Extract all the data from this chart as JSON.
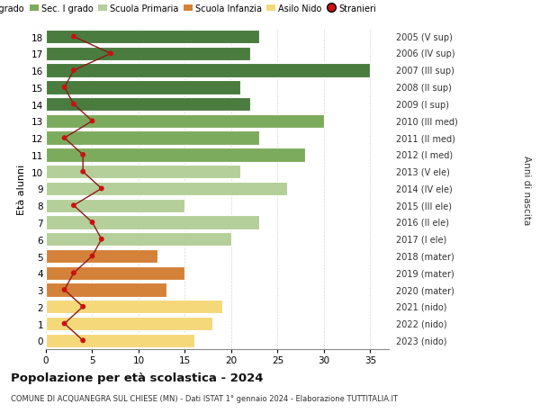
{
  "ages": [
    18,
    17,
    16,
    15,
    14,
    13,
    12,
    11,
    10,
    9,
    8,
    7,
    6,
    5,
    4,
    3,
    2,
    1,
    0
  ],
  "right_labels": [
    "2005 (V sup)",
    "2006 (IV sup)",
    "2007 (III sup)",
    "2008 (II sup)",
    "2009 (I sup)",
    "2010 (III med)",
    "2011 (II med)",
    "2012 (I med)",
    "2013 (V ele)",
    "2014 (IV ele)",
    "2015 (III ele)",
    "2016 (II ele)",
    "2017 (I ele)",
    "2018 (mater)",
    "2019 (mater)",
    "2020 (mater)",
    "2021 (nido)",
    "2022 (nido)",
    "2023 (nido)"
  ],
  "bar_values": [
    23,
    22,
    35,
    21,
    22,
    30,
    23,
    28,
    21,
    26,
    15,
    23,
    20,
    12,
    15,
    13,
    19,
    18,
    16
  ],
  "bar_colors": [
    "#4a7c3f",
    "#4a7c3f",
    "#4a7c3f",
    "#4a7c3f",
    "#4a7c3f",
    "#7dab5e",
    "#7dab5e",
    "#7dab5e",
    "#b5cf9a",
    "#b5cf9a",
    "#b5cf9a",
    "#b5cf9a",
    "#b5cf9a",
    "#d4823a",
    "#d4823a",
    "#d4823a",
    "#f5d87a",
    "#f5d87a",
    "#f5d87a"
  ],
  "stranieri_values": [
    3,
    7,
    3,
    2,
    3,
    5,
    2,
    4,
    4,
    6,
    3,
    5,
    6,
    5,
    3,
    2,
    4,
    2,
    4
  ],
  "legend_labels": [
    "Sec. II grado",
    "Sec. I grado",
    "Scuola Primaria",
    "Scuola Infanzia",
    "Asilo Nido",
    "Stranieri"
  ],
  "legend_colors": [
    "#4a7c3f",
    "#7dab5e",
    "#b5cf9a",
    "#d4823a",
    "#f5d87a",
    "#cc1111"
  ],
  "title": "Popolazione per età scolastica - 2024",
  "subtitle": "COMUNE DI ACQUANEGRA SUL CHIESE (MN) - Dati ISTAT 1° gennaio 2024 - Elaborazione TUTTITALIA.IT",
  "ylabel": "Età alunni",
  "right_ylabel": "Anni di nascita",
  "xlim": [
    0,
    37
  ],
  "xticks": [
    0,
    5,
    10,
    15,
    20,
    25,
    30,
    35
  ]
}
